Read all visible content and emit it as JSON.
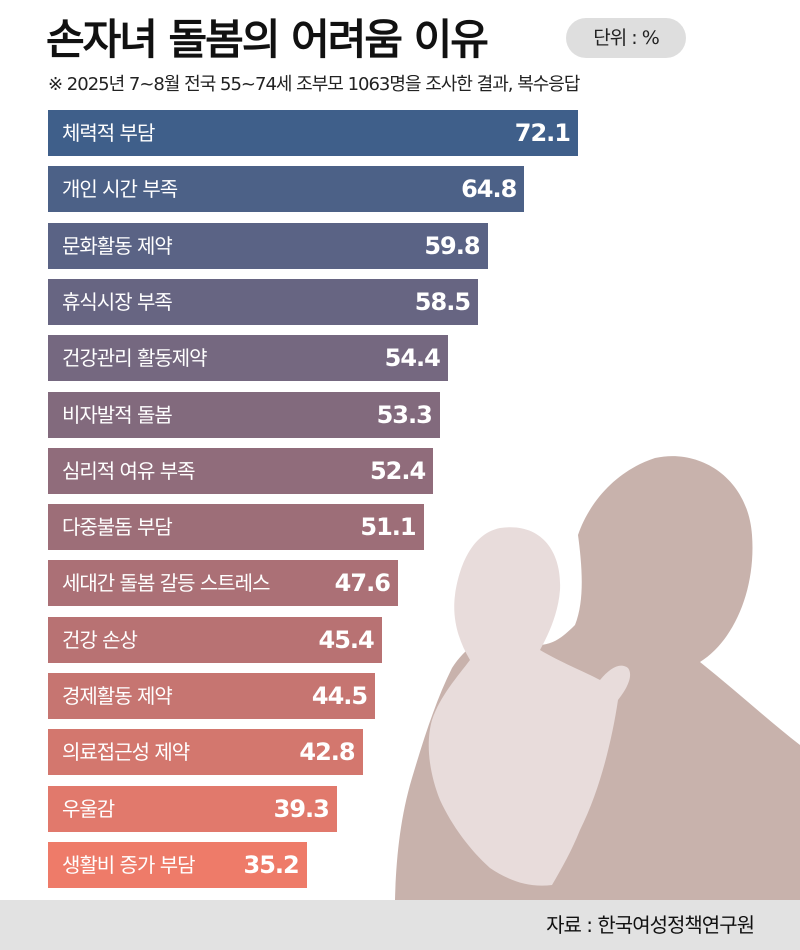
{
  "header": {
    "title": "손자녀 돌봄의 어려움 이유",
    "unit": "단위 : %",
    "subtitle": "※ 2025년 7~8월 전국 55~74세 조부모 1063명을 조사한 결과, 복수응답"
  },
  "footer": {
    "source": "자료 : 한국여성정책연구원"
  },
  "colors": {
    "bar_top": "#3f5f8a",
    "bar_bottom": "#ee7b69",
    "silhouette_adult": "#c8b2ac",
    "silhouette_baby": "#e8dcdb",
    "footer_bg": "#e2e2e2"
  },
  "chart_data": {
    "type": "bar",
    "orientation": "horizontal",
    "title": "손자녀 돌봄의 어려움 이유",
    "unit": "%",
    "xlim": [
      0,
      100
    ],
    "grid": false,
    "categories": [
      "체력적 부담",
      "개인 시간 부족",
      "문화활동 제약",
      "휴식시장 부족",
      "건강관리 활동제약",
      "비자발적 돌봄",
      "심리적 여유 부족",
      "다중불돔 부담",
      "세대간 돌봄 갈등 스트레스",
      "건강 손상",
      "경제활동 제약",
      "의료접근성 제약",
      "우울감",
      "생활비 증가 부담"
    ],
    "values": [
      72.1,
      64.8,
      59.8,
      58.5,
      54.4,
      53.3,
      52.4,
      51.1,
      47.6,
      45.4,
      44.5,
      42.8,
      39.3,
      35.2
    ],
    "value_labels": [
      "72.1",
      "64.8",
      "59.8",
      "58.5",
      "54.4",
      "53.3",
      "52.4",
      "51.1",
      "47.6",
      "45.4",
      "44.5",
      "42.8",
      "39.3",
      "35.2"
    ]
  }
}
